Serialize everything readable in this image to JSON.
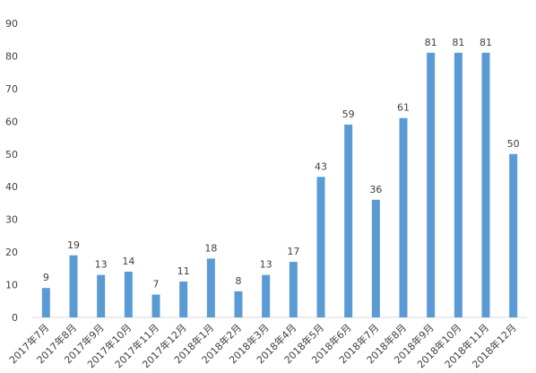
{
  "chart_data": {
    "type": "bar",
    "categories": [
      "2017年7月",
      "2017年8月",
      "2017年9月",
      "2017年10月",
      "2017年11月",
      "2017年12月",
      "2018年1月",
      "2018年2月",
      "2018年3月",
      "2018年4月",
      "2018年5月",
      "2018年6月",
      "2018年7月",
      "2018年8月",
      "2018年9月",
      "2018年10月",
      "2018年11月",
      "2018年12月"
    ],
    "values": [
      9,
      19,
      13,
      14,
      7,
      11,
      18,
      8,
      13,
      17,
      43,
      59,
      36,
      61,
      81,
      81,
      81,
      50
    ],
    "color": "#5b9bd5",
    "ylim": [
      0,
      90
    ],
    "yticks": [
      0,
      10,
      20,
      30,
      40,
      50,
      60,
      70,
      80,
      90
    ],
    "grid": false
  }
}
